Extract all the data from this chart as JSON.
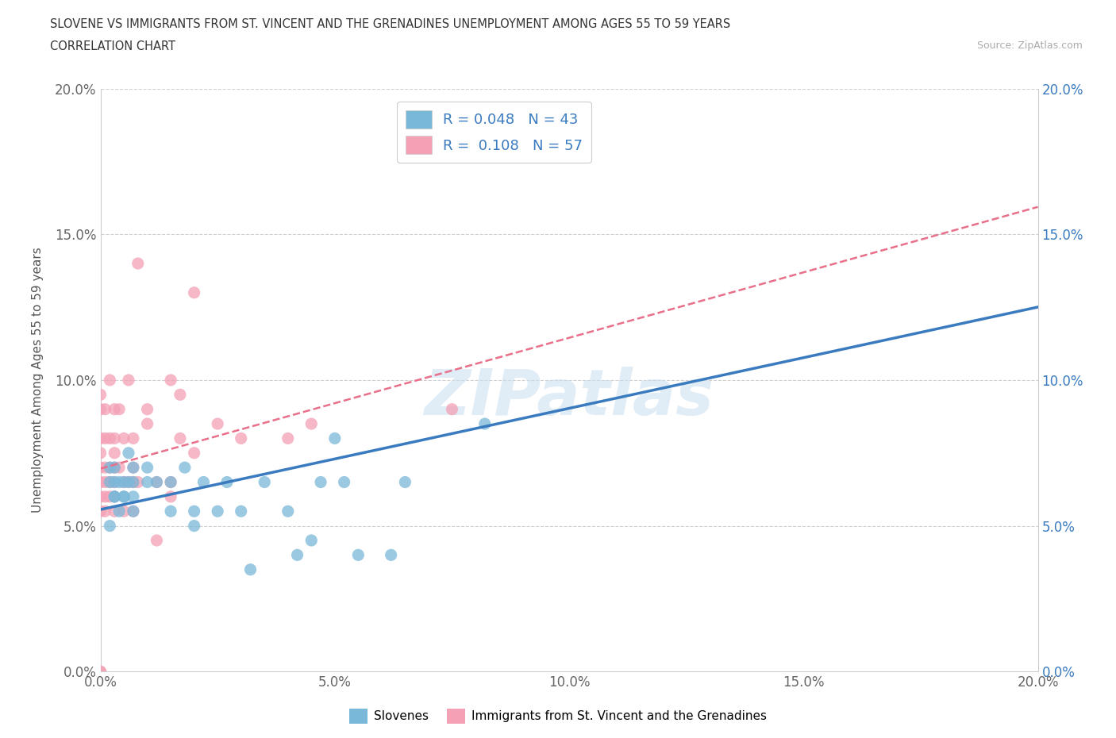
{
  "title_line1": "SLOVENE VS IMMIGRANTS FROM ST. VINCENT AND THE GRENADINES UNEMPLOYMENT AMONG AGES 55 TO 59 YEARS",
  "title_line2": "CORRELATION CHART",
  "source_text": "Source: ZipAtlas.com",
  "ylabel": "Unemployment Among Ages 55 to 59 years",
  "xlim": [
    0.0,
    0.2
  ],
  "ylim": [
    0.0,
    0.2
  ],
  "xticks": [
    0.0,
    0.05,
    0.1,
    0.15,
    0.2
  ],
  "yticks": [
    0.0,
    0.05,
    0.1,
    0.15,
    0.2
  ],
  "xticklabels": [
    "0.0%",
    "5.0%",
    "10.0%",
    "15.0%",
    "20.0%"
  ],
  "yticklabels": [
    "0.0%",
    "5.0%",
    "10.0%",
    "15.0%",
    "20.0%"
  ],
  "watermark": "ZIPatlas",
  "blue_R": 0.048,
  "blue_N": 43,
  "pink_R": 0.108,
  "pink_N": 57,
  "blue_color": "#7ab8d9",
  "pink_color": "#f4a0b5",
  "blue_line_color": "#3a7bbf",
  "pink_line_color": "#e8708a",
  "legend_label_blue": "Slovenes",
  "legend_label_pink": "Immigrants from St. Vincent and the Grenadines",
  "blue_scatter_x": [
    0.002,
    0.002,
    0.002,
    0.003,
    0.003,
    0.003,
    0.003,
    0.004,
    0.004,
    0.005,
    0.005,
    0.005,
    0.006,
    0.006,
    0.007,
    0.007,
    0.007,
    0.007,
    0.01,
    0.01,
    0.012,
    0.015,
    0.015,
    0.018,
    0.02,
    0.02,
    0.022,
    0.025,
    0.027,
    0.03,
    0.032,
    0.035,
    0.04,
    0.042,
    0.045,
    0.047,
    0.05,
    0.052,
    0.055,
    0.062,
    0.065,
    0.082,
    0.095
  ],
  "blue_scatter_y": [
    0.065,
    0.07,
    0.05,
    0.06,
    0.065,
    0.07,
    0.06,
    0.065,
    0.055,
    0.06,
    0.065,
    0.06,
    0.065,
    0.075,
    0.06,
    0.065,
    0.07,
    0.055,
    0.065,
    0.07,
    0.065,
    0.055,
    0.065,
    0.07,
    0.05,
    0.055,
    0.065,
    0.055,
    0.065,
    0.055,
    0.035,
    0.065,
    0.055,
    0.04,
    0.045,
    0.065,
    0.08,
    0.065,
    0.04,
    0.04,
    0.065,
    0.085,
    0.19
  ],
  "pink_scatter_x": [
    0.0,
    0.0,
    0.0,
    0.0,
    0.0,
    0.0,
    0.0,
    0.0,
    0.0,
    0.0,
    0.001,
    0.001,
    0.001,
    0.001,
    0.001,
    0.001,
    0.002,
    0.002,
    0.002,
    0.002,
    0.002,
    0.003,
    0.003,
    0.003,
    0.003,
    0.003,
    0.003,
    0.003,
    0.004,
    0.004,
    0.005,
    0.005,
    0.005,
    0.006,
    0.006,
    0.007,
    0.007,
    0.007,
    0.007,
    0.008,
    0.008,
    0.01,
    0.01,
    0.012,
    0.012,
    0.015,
    0.015,
    0.015,
    0.017,
    0.017,
    0.02,
    0.02,
    0.025,
    0.03,
    0.04,
    0.045,
    0.075
  ],
  "pink_scatter_y": [
    0.0,
    0.0,
    0.055,
    0.06,
    0.065,
    0.07,
    0.075,
    0.08,
    0.09,
    0.095,
    0.055,
    0.06,
    0.065,
    0.07,
    0.08,
    0.09,
    0.06,
    0.065,
    0.07,
    0.08,
    0.1,
    0.055,
    0.06,
    0.065,
    0.07,
    0.075,
    0.08,
    0.09,
    0.07,
    0.09,
    0.055,
    0.065,
    0.08,
    0.065,
    0.1,
    0.055,
    0.065,
    0.07,
    0.08,
    0.065,
    0.14,
    0.085,
    0.09,
    0.045,
    0.065,
    0.06,
    0.065,
    0.1,
    0.08,
    0.095,
    0.075,
    0.13,
    0.085,
    0.08,
    0.08,
    0.085,
    0.09
  ]
}
